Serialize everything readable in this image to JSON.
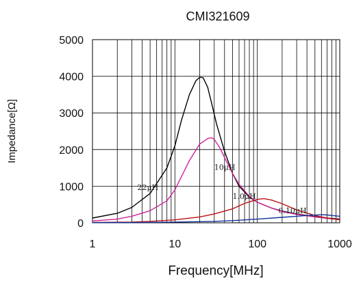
{
  "chart_data": {
    "type": "line",
    "title": "CMI321609",
    "xlabel": "Frequency[MHz]",
    "ylabel": "Impedance[Ω]",
    "x_scale": "log",
    "xlim": [
      1,
      1000
    ],
    "ylim": [
      0,
      5000
    ],
    "grid": true,
    "x_ticks": [
      1,
      10,
      100,
      1000
    ],
    "x_tick_labels": [
      "1",
      "10",
      "100",
      "1000"
    ],
    "y_ticks": [
      0,
      1000,
      2000,
      3000,
      4000,
      5000
    ],
    "y_tick_labels": [
      "0",
      "1000",
      "2000",
      "3000",
      "4000",
      "5000"
    ],
    "series": [
      {
        "name": "22μH",
        "color": "#000000",
        "x": [
          1,
          2,
          3,
          5,
          8,
          10,
          12,
          15,
          18,
          20,
          22,
          25,
          28,
          32,
          40,
          50,
          60,
          80,
          100,
          150,
          200,
          300,
          500,
          700,
          1000
        ],
        "y": [
          130,
          260,
          420,
          800,
          1500,
          2100,
          2800,
          3500,
          3880,
          3970,
          3960,
          3700,
          3250,
          2700,
          1950,
          1350,
          1000,
          700,
          560,
          400,
          320,
          240,
          170,
          130,
          100
        ]
      },
      {
        "name": "10μH",
        "color": "#cc2299",
        "x": [
          1,
          2,
          3,
          5,
          8,
          10,
          15,
          20,
          25,
          28,
          30,
          35,
          40,
          50,
          60,
          80,
          100,
          150,
          200,
          300,
          500,
          700,
          1000
        ],
        "y": [
          50,
          100,
          180,
          330,
          600,
          900,
          1700,
          2150,
          2300,
          2320,
          2280,
          2050,
          1780,
          1350,
          1050,
          720,
          560,
          400,
          310,
          230,
          160,
          120,
          90
        ]
      },
      {
        "name": "1.0μH",
        "color": "#bb1111",
        "x": [
          1,
          3,
          5,
          10,
          20,
          30,
          50,
          70,
          100,
          120,
          150,
          200,
          300,
          500,
          700,
          1000
        ],
        "y": [
          10,
          20,
          40,
          80,
          160,
          240,
          380,
          530,
          640,
          660,
          620,
          520,
          350,
          200,
          130,
          80
        ]
      },
      {
        "name": "0.10μH",
        "color": "#113399",
        "x": [
          1,
          5,
          10,
          30,
          50,
          100,
          200,
          300,
          400,
          500,
          600,
          700,
          800,
          1000
        ],
        "y": [
          5,
          10,
          20,
          40,
          60,
          100,
          150,
          180,
          200,
          210,
          220,
          215,
          200,
          180
        ]
      }
    ],
    "annotations": [
      {
        "text": "22μH",
        "x": 3.5,
        "y": 900
      },
      {
        "text": "10μH",
        "x": 30,
        "y": 1450
      },
      {
        "text": "1.0μH",
        "x": 50,
        "y": 650
      },
      {
        "text": "0.10μH",
        "x": 180,
        "y": 260
      }
    ]
  }
}
